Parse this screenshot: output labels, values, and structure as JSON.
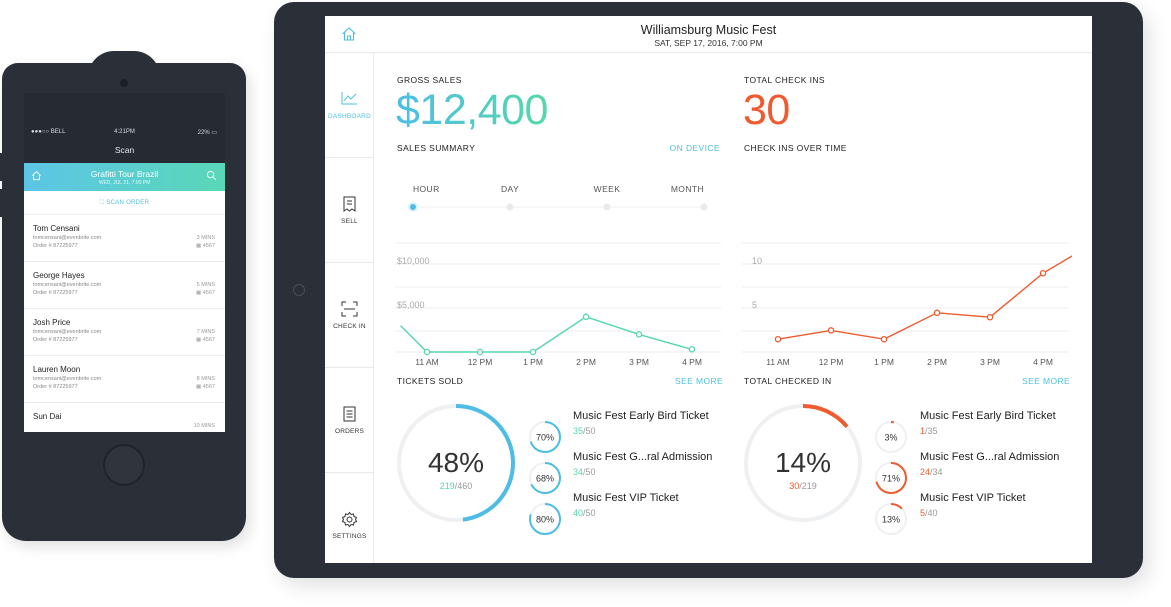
{
  "phone": {
    "status": {
      "carrier": "●●●○○ BELL",
      "time": "4:21PM",
      "battery": "22%"
    },
    "screen_title": "Scan",
    "event_title": "Grafitti Tour Brazil",
    "event_date": "WED, JUL 21, 7:00 PM",
    "scan_order_label": "SCAN ORDER",
    "orders": [
      {
        "name": "Tom Censani",
        "email": "tomcensani@evenbrite.com",
        "order": "Order # 87225977",
        "time": "3 MINS",
        "qty": "4567"
      },
      {
        "name": "George Hayes",
        "email": "tomcensani@evenbrite.com",
        "order": "Order # 87225977",
        "time": "5 MINS",
        "qty": "4567"
      },
      {
        "name": "Josh Price",
        "email": "tomcensani@evenbrite.com",
        "order": "Order # 87225977",
        "time": "7 MINS",
        "qty": "4567"
      },
      {
        "name": "Lauren Moon",
        "email": "tomcensani@evenbrite.com",
        "order": "Order # 87225977",
        "time": "8 MINS",
        "qty": "4567"
      },
      {
        "name": "Sun Dai",
        "email": "",
        "order": "",
        "time": "10 MINS",
        "qty": ""
      }
    ]
  },
  "tablet": {
    "event_title": "Williamsburg Music Fest",
    "event_date": "SAT, SEP 17, 2016, 7:00 PM",
    "nav": [
      {
        "label": "DASHBOARD",
        "icon": "chart-icon"
      },
      {
        "label": "SELL",
        "icon": "ticket-icon"
      },
      {
        "label": "CHECK IN",
        "icon": "scan-icon"
      },
      {
        "label": "ORDERS",
        "icon": "orders-icon"
      },
      {
        "label": "SETTINGS",
        "icon": "gear-icon"
      }
    ],
    "gross_sales_label": "GROSS SALES",
    "gross_sales_value": "$12,400",
    "total_checkins_label": "TOTAL CHECK INS",
    "total_checkins_value": "30",
    "sales_summary_label": "SALES SUMMARY",
    "on_device_label": "ON DEVICE",
    "checkins_over_time_label": "CHECK INS OVER TIME",
    "period_tabs": [
      "HOUR",
      "DAY",
      "WEEK",
      "MONTH"
    ],
    "tickets_sold_label": "TICKETS SOLD",
    "total_checked_in_label": "TOTAL CHECKED IN",
    "see_more_label": "SEE MORE",
    "tickets_sold": {
      "overall_pct": "48%",
      "sold": "219",
      "total": "460",
      "overall_fraction": 0.48,
      "items": [
        {
          "name": "Music Fest Early Bird Ticket",
          "pct": "70%",
          "count": "35",
          "total": "50",
          "fraction": 0.7
        },
        {
          "name": "Music Fest G...ral Admission",
          "pct": "68%",
          "count": "34",
          "total": "50",
          "fraction": 0.68
        },
        {
          "name": "Music Fest VIP Ticket",
          "pct": "80%",
          "count": "40",
          "total": "50",
          "fraction": 0.8
        }
      ]
    },
    "checked_in": {
      "overall_pct": "14%",
      "checked": "30",
      "total": "219",
      "overall_fraction": 0.14,
      "items": [
        {
          "name": "Music Fest Early Bird Ticket",
          "pct": "3%",
          "count": "1",
          "total": "35",
          "fraction": 0.03
        },
        {
          "name": "Music Fest G...ral Admission",
          "pct": "71%",
          "count": "24",
          "total": "34",
          "fraction": 0.71
        },
        {
          "name": "Music Fest VIP Ticket",
          "pct": "13%",
          "count": "5",
          "total": "40",
          "fraction": 0.13
        }
      ]
    },
    "colors": {
      "teal": "#55d8a8",
      "blue": "#4ebde6",
      "orange": "#ef5a2e"
    }
  },
  "chart_data": [
    {
      "type": "line",
      "title": "SALES SUMMARY",
      "categories": [
        "11 AM",
        "12 PM",
        "1 PM",
        "2 PM",
        "3 PM",
        "4 PM"
      ],
      "x": [
        10.5,
        11,
        12,
        13,
        14,
        15,
        16
      ],
      "series": [
        {
          "name": "Sales",
          "values": [
            3000,
            0,
            0,
            0,
            4000,
            2000,
            300
          ]
        }
      ],
      "y_ticks": [
        "$5,000",
        "$10,000"
      ],
      "ylim": [
        0,
        15000
      ]
    },
    {
      "type": "line",
      "title": "CHECK INS OVER TIME",
      "categories": [
        "11 AM",
        "12 PM",
        "1 PM",
        "2 PM",
        "3 PM",
        "4 PM"
      ],
      "x": [
        11,
        12,
        13,
        14,
        15,
        16,
        16.7
      ],
      "series": [
        {
          "name": "Check ins",
          "values": [
            1,
            2,
            1,
            4,
            3.5,
            8.5,
            11
          ]
        }
      ],
      "y_ticks": [
        "5",
        "10"
      ],
      "ylim": [
        0,
        15
      ]
    }
  ]
}
